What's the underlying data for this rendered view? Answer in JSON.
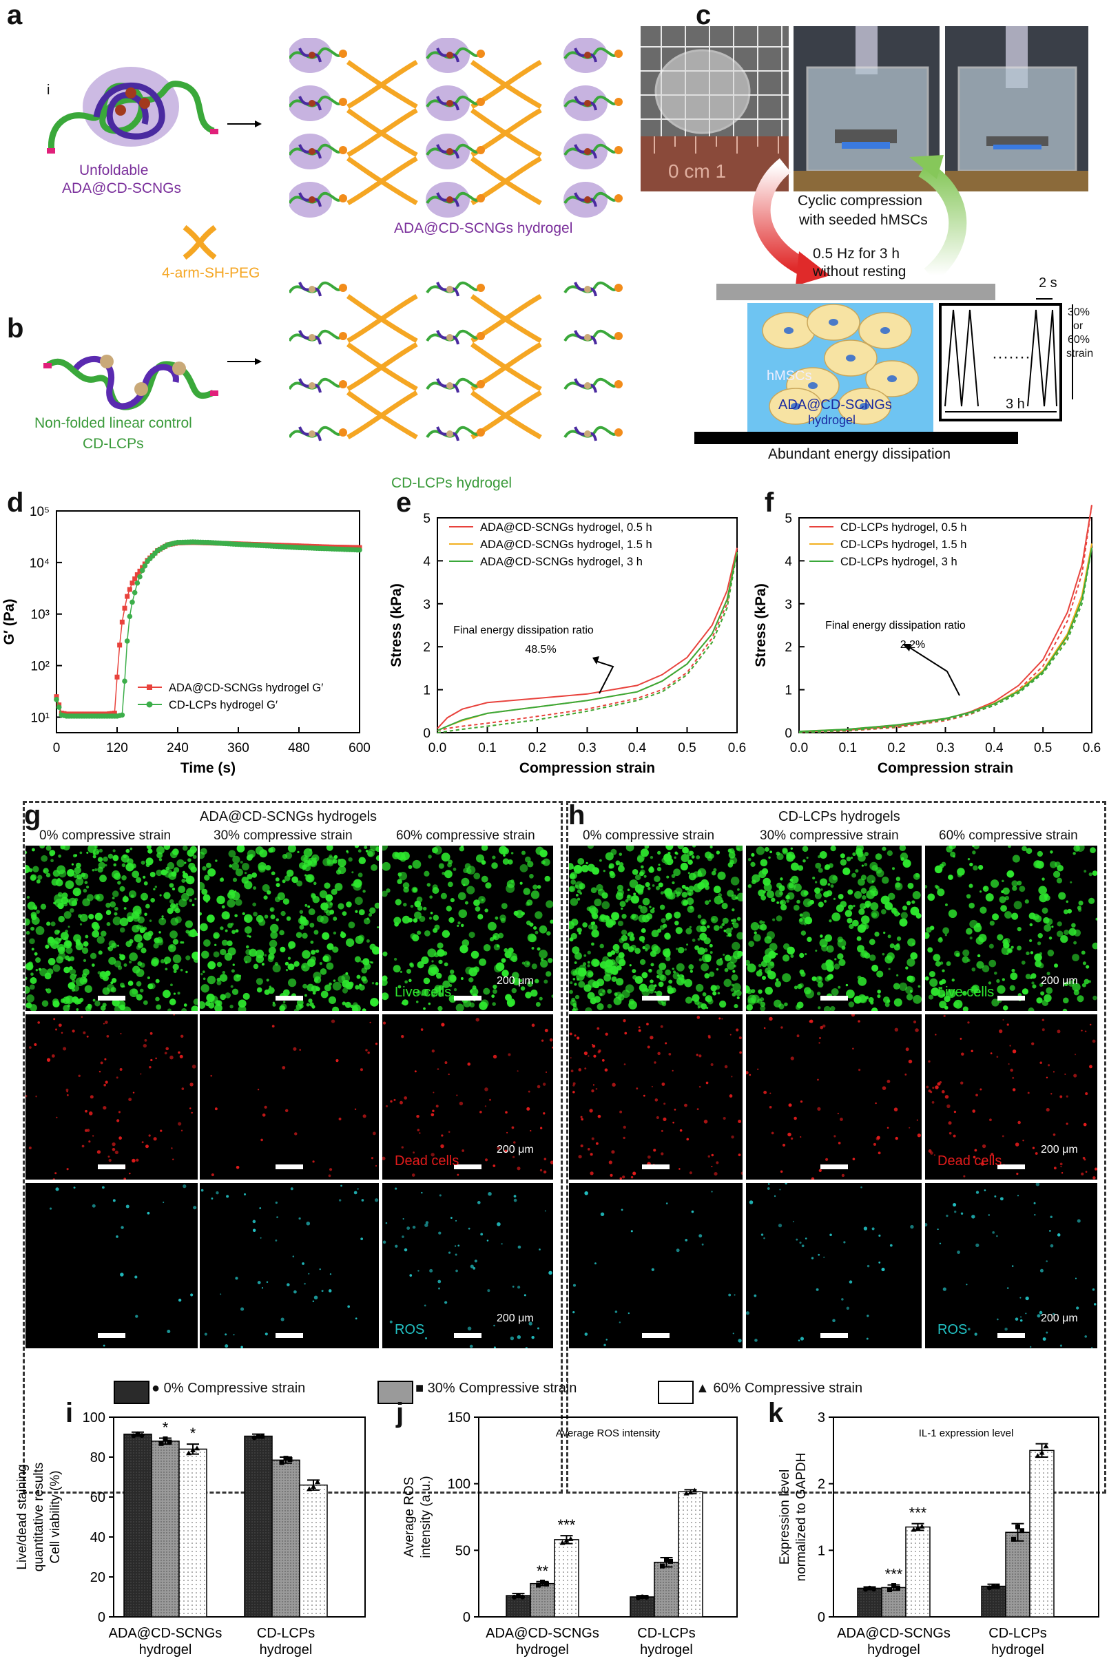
{
  "panels": {
    "a": {
      "label": "a",
      "small_mark": "i",
      "left_caption_1": "Unfoldable",
      "left_caption_2": "ADA@CD-SCNGs",
      "right_caption": "ADA@CD-SCNGs hydrogel",
      "crosslinker": "4-arm-SH-PEG"
    },
    "b": {
      "label": "b",
      "left_caption_1": "Non-folded linear control",
      "left_caption_2": "CD-LCPs",
      "right_caption": "CD-LCPs hydrogel"
    },
    "c": {
      "label": "c",
      "ruler_text": "0 cm 1",
      "arrow_text_1": "Cyclic compression",
      "arrow_text_2": "with seeded hMSCs",
      "freq_text_1": "0.5 Hz for 3 h",
      "freq_text_2": "without resting",
      "cells_label": "hMSCs",
      "gel_label_1": "ADA@CD-SCNGs",
      "gel_label_2": "hydrogel",
      "period": "2 s",
      "duration": "3 h",
      "dots": "·······",
      "strain_1": "30%",
      "strain_2": "or",
      "strain_3": "60%",
      "strain_4": "strain",
      "bottom": "Abundant energy dissipation"
    },
    "g": {
      "label": "g",
      "title": "ADA@CD-SCNGs hydrogels",
      "cols": [
        "0% compressive strain",
        "30% compressive strain",
        "60% compressive strain"
      ],
      "rows": [
        "Live cells",
        "Dead cells",
        "ROS"
      ],
      "scale": "200 μm"
    },
    "h": {
      "label": "h",
      "title": "CD-LCPs hydrogels",
      "cols": [
        "0% compressive strain",
        "30% compressive strain",
        "60% compressive strain"
      ],
      "rows": [
        "Live cells",
        "Dead cells",
        "ROS"
      ],
      "scale": "200 μm"
    },
    "legend": [
      "0% Compressive strain",
      "30% Compressive strain",
      "60% Compressive strain"
    ]
  },
  "colors": {
    "ada": "#e8423c",
    "ada_15": "#f2b01e",
    "ada_3": "#3aa83a",
    "cdlcp": "#3cae4a",
    "purple": "#7a2f9b",
    "green_text": "#3a9a3a",
    "orange": "#f5a623",
    "live": "#2ee82e",
    "dead": "#e21b1b",
    "ros": "#22c1c3"
  },
  "chart_data": [
    {
      "panel": "d",
      "type": "scatter",
      "xlabel": "Time (s)",
      "ylabel": "G′ (Pa)",
      "xlim": [
        0,
        600
      ],
      "ylim": [
        5,
        100000
      ],
      "yscale": "log",
      "xticks": [
        0,
        120,
        240,
        360,
        480,
        600
      ],
      "yticks": [
        "10¹",
        "10²",
        "10³",
        "10⁴",
        "10⁵"
      ],
      "series": [
        {
          "name": "ADA@CD-SCNGs hydrogel G′",
          "color": "#e8423c",
          "marker": "square",
          "x": [
            0,
            10,
            20,
            40,
            60,
            80,
            100,
            115,
            120,
            125,
            130,
            135,
            140,
            145,
            150,
            160,
            170,
            180,
            200,
            220,
            240,
            270,
            300,
            360,
            420,
            480,
            540,
            600
          ],
          "y": [
            25,
            12,
            11.5,
            11.5,
            11.5,
            11.5,
            11.5,
            12,
            60,
            250,
            700,
            1300,
            2200,
            3000,
            4000,
            5800,
            8000,
            11000,
            17000,
            22000,
            24000,
            24500,
            24000,
            23000,
            22000,
            21000,
            20000,
            19500
          ]
        },
        {
          "name": "CD-LCPs hydrogel G′",
          "color": "#3cae4a",
          "marker": "circle",
          "x": [
            0,
            10,
            20,
            40,
            60,
            80,
            100,
            120,
            130,
            135,
            140,
            145,
            150,
            160,
            170,
            180,
            200,
            220,
            240,
            270,
            300,
            360,
            420,
            480,
            540,
            600
          ],
          "y": [
            22,
            11,
            10.5,
            10.5,
            10.5,
            10.5,
            10.5,
            10.5,
            11,
            50,
            300,
            900,
            1700,
            4000,
            7000,
            10500,
            17000,
            22000,
            24500,
            25000,
            24500,
            22500,
            21000,
            19500,
            18500,
            17500
          ]
        }
      ]
    },
    {
      "panel": "e",
      "type": "line",
      "xlabel": "Compression strain",
      "ylabel": "Stress (kPa)",
      "xlim": [
        0,
        0.6
      ],
      "ylim": [
        0,
        5
      ],
      "xticks": [
        0.0,
        0.1,
        0.2,
        0.3,
        0.4,
        0.5,
        0.6
      ],
      "yticks": [
        0,
        1,
        2,
        3,
        4,
        5
      ],
      "annotation_1": "Final energy dissipation ratio",
      "annotation_2": "48.5%",
      "series": [
        {
          "name": "ADA@CD-SCNGs hydrogel, 0.5 h",
          "color": "#e8423c",
          "x": [
            0,
            0.02,
            0.05,
            0.1,
            0.2,
            0.3,
            0.4,
            0.45,
            0.5,
            0.55,
            0.58,
            0.6
          ],
          "y": [
            0.1,
            0.35,
            0.55,
            0.7,
            0.8,
            0.9,
            1.1,
            1.35,
            1.75,
            2.5,
            3.3,
            4.3
          ],
          "unload": [
            0.05,
            0.1,
            0.15,
            0.22,
            0.38,
            0.55,
            0.8,
            1.0,
            1.4,
            2.2,
            3.0,
            4.3
          ]
        },
        {
          "name": "ADA@CD-SCNGs hydrogel, 1.5 h",
          "color": "#f2b01e",
          "x": [
            0,
            0.02,
            0.05,
            0.1,
            0.2,
            0.3,
            0.4,
            0.45,
            0.5,
            0.55,
            0.58,
            0.6
          ],
          "y": [
            0.05,
            0.15,
            0.28,
            0.45,
            0.6,
            0.75,
            0.95,
            1.2,
            1.6,
            2.3,
            3.1,
            4.2
          ],
          "unload": [
            0.0,
            0.03,
            0.08,
            0.15,
            0.3,
            0.5,
            0.75,
            0.95,
            1.35,
            2.1,
            2.9,
            4.2
          ]
        },
        {
          "name": "ADA@CD-SCNGs hydrogel, 3 h",
          "color": "#3aa83a",
          "x": [
            0,
            0.02,
            0.05,
            0.1,
            0.2,
            0.3,
            0.4,
            0.45,
            0.5,
            0.55,
            0.58,
            0.6
          ],
          "y": [
            0.05,
            0.15,
            0.3,
            0.45,
            0.6,
            0.75,
            0.95,
            1.2,
            1.6,
            2.3,
            3.1,
            4.2
          ],
          "unload": [
            0.0,
            0.03,
            0.08,
            0.15,
            0.3,
            0.5,
            0.75,
            0.95,
            1.35,
            2.1,
            2.9,
            4.2
          ]
        }
      ]
    },
    {
      "panel": "f",
      "type": "line",
      "xlabel": "Compression strain",
      "ylabel": "Stress (kPa)",
      "xlim": [
        0,
        0.6
      ],
      "ylim": [
        0,
        5
      ],
      "xticks": [
        0.0,
        0.1,
        0.2,
        0.3,
        0.4,
        0.5,
        0.6
      ],
      "yticks": [
        0,
        1,
        2,
        3,
        4,
        5
      ],
      "annotation_1": "Final energy dissipation ratio",
      "annotation_2": "2.2%",
      "series": [
        {
          "name": "CD-LCPs hydrogel, 0.5 h",
          "color": "#e8423c",
          "x": [
            0,
            0.1,
            0.2,
            0.3,
            0.35,
            0.4,
            0.45,
            0.5,
            0.55,
            0.58,
            0.6
          ],
          "y": [
            0.02,
            0.06,
            0.15,
            0.32,
            0.48,
            0.72,
            1.1,
            1.7,
            2.8,
            3.9,
            5.3
          ],
          "unload": [
            0.0,
            0.04,
            0.12,
            0.28,
            0.42,
            0.65,
            1.0,
            1.55,
            2.6,
            3.7,
            5.3
          ]
        },
        {
          "name": "CD-LCPs hydrogel, 1.5 h",
          "color": "#f2b01e",
          "x": [
            0,
            0.1,
            0.2,
            0.3,
            0.35,
            0.4,
            0.45,
            0.5,
            0.55,
            0.58,
            0.6
          ],
          "y": [
            0.03,
            0.08,
            0.18,
            0.33,
            0.47,
            0.68,
            0.98,
            1.45,
            2.3,
            3.2,
            4.4
          ],
          "unload": [
            0.0,
            0.05,
            0.14,
            0.3,
            0.44,
            0.64,
            0.93,
            1.4,
            2.2,
            3.1,
            4.4
          ]
        },
        {
          "name": "CD-LCPs hydrogel, 3 h",
          "color": "#3aa83a",
          "x": [
            0,
            0.1,
            0.2,
            0.3,
            0.35,
            0.4,
            0.45,
            0.5,
            0.55,
            0.58,
            0.6
          ],
          "y": [
            0.03,
            0.08,
            0.18,
            0.33,
            0.47,
            0.67,
            0.96,
            1.42,
            2.25,
            3.1,
            4.3
          ],
          "unload": [
            0.0,
            0.05,
            0.14,
            0.3,
            0.44,
            0.63,
            0.92,
            1.38,
            2.15,
            3.0,
            4.3
          ]
        }
      ]
    },
    {
      "panel": "i",
      "type": "bar",
      "ylabel_1": "Live/dead staining",
      "ylabel_2": "quantitative results",
      "ylabel_3": "Cell viability (%)",
      "ylim": [
        0,
        100
      ],
      "yticks": [
        0,
        20,
        40,
        60,
        80,
        100
      ],
      "groups": [
        "ADA@CD-SCNGs",
        "CD-LCPs"
      ],
      "group_sub": "hydrogel",
      "series": [
        {
          "name": "0% Compressive strain",
          "values": [
            91.5,
            90.5
          ],
          "err": [
            1.0,
            1.0
          ],
          "sig": [
            "",
            ""
          ]
        },
        {
          "name": "30% Compressive strain",
          "values": [
            88,
            78.5
          ],
          "err": [
            1.5,
            1.5
          ],
          "sig": [
            "*",
            ""
          ]
        },
        {
          "name": "60% Compressive strain",
          "values": [
            84,
            66
          ],
          "err": [
            2.5,
            2.5
          ],
          "sig": [
            "*",
            ""
          ]
        }
      ]
    },
    {
      "panel": "j",
      "type": "bar",
      "title": "Average ROS intensity",
      "ylabel_1": "Average ROS",
      "ylabel_2": "intensity (a.u.)",
      "ylim": [
        0,
        150
      ],
      "yticks": [
        0,
        50,
        100,
        150
      ],
      "groups": [
        "ADA@CD-SCNGs",
        "CD-LCPs"
      ],
      "group_sub": "hydrogel",
      "series": [
        {
          "name": "0% Compressive strain",
          "values": [
            16,
            15
          ],
          "err": [
            1.5,
            1.0
          ],
          "sig": [
            "",
            ""
          ]
        },
        {
          "name": "30% Compressive strain",
          "values": [
            25,
            41
          ],
          "err": [
            1.5,
            3.5
          ],
          "sig": [
            "**",
            ""
          ]
        },
        {
          "name": "60% Compressive strain",
          "values": [
            58,
            94
          ],
          "err": [
            3.0,
            1.5
          ],
          "sig": [
            "***",
            ""
          ]
        }
      ]
    },
    {
      "panel": "k",
      "type": "bar",
      "title": "IL-1 expression level",
      "ylabel_1": "Expression level",
      "ylabel_2": "normalized to GAPDH",
      "ylim": [
        0,
        3
      ],
      "yticks": [
        0,
        1,
        2,
        3
      ],
      "groups": [
        "ADA@CD-SCNGs",
        "CD-LCPs"
      ],
      "group_sub": "hydrogel",
      "series": [
        {
          "name": "0% Compressive strain",
          "values": [
            0.43,
            0.46
          ],
          "err": [
            0.02,
            0.03
          ],
          "sig": [
            "",
            ""
          ]
        },
        {
          "name": "30% Compressive strain",
          "values": [
            0.44,
            1.27
          ],
          "err": [
            0.04,
            0.13
          ],
          "sig": [
            "***",
            ""
          ]
        },
        {
          "name": "60% Compressive strain",
          "values": [
            1.35,
            2.5
          ],
          "err": [
            0.05,
            0.1
          ],
          "sig": [
            "***",
            ""
          ]
        }
      ]
    }
  ]
}
